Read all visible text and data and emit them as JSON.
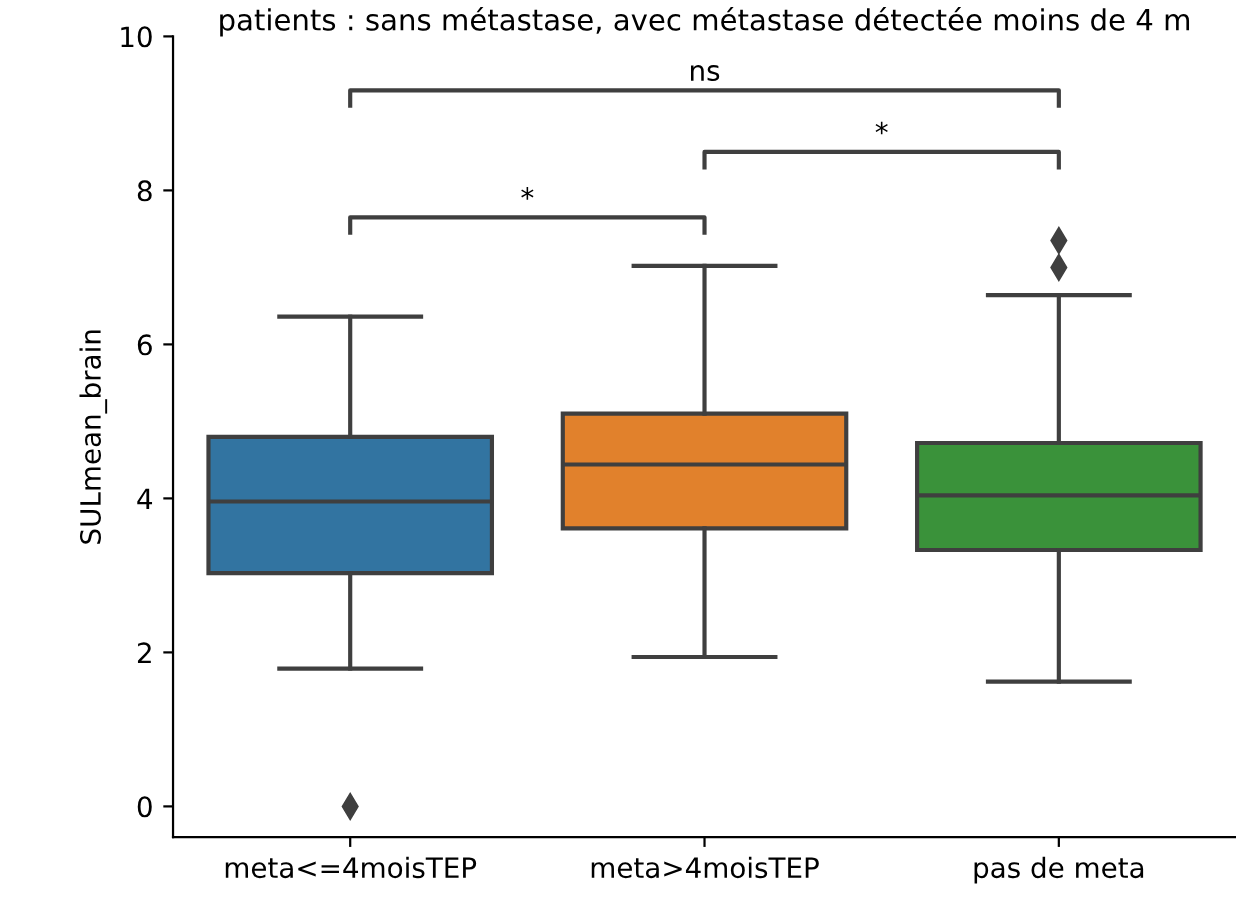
{
  "chart_data": {
    "type": "box",
    "title": "patients : sans métastase, avec métastase détectée moins de 4 m",
    "ylabel": "SULmean_brain",
    "categories": [
      "meta<=4moisTEP",
      "meta>4moisTEP",
      "pas de meta"
    ],
    "colors": [
      "#3274a1",
      "#e1812c",
      "#3a923a"
    ],
    "boxes": [
      {
        "low": 1.79,
        "q1": 3.03,
        "median": 3.96,
        "q3": 4.8,
        "high": 6.36,
        "outliers": [
          0
        ]
      },
      {
        "low": 1.94,
        "q1": 3.61,
        "median": 4.44,
        "q3": 5.1,
        "high": 7.02
      },
      {
        "low": 1.62,
        "q1": 3.33,
        "median": 4.04,
        "q3": 4.72,
        "high": 6.64,
        "outliers": [
          7.0,
          7.35
        ]
      }
    ],
    "ylim": [
      -0.4,
      10
    ],
    "yticks": [
      0,
      2,
      4,
      6,
      8,
      10
    ],
    "grid": false,
    "legend": false,
    "annotations": [
      "*",
      "*",
      "ns"
    ]
  }
}
